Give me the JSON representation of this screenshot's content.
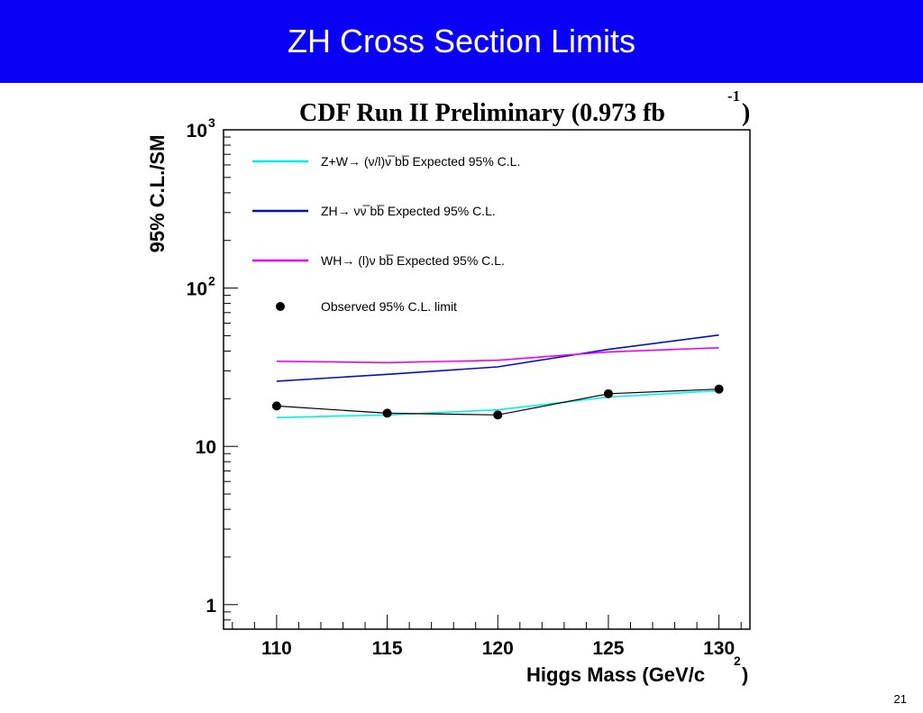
{
  "slide": {
    "title": "ZH Cross Section Limits",
    "page_number": "21"
  },
  "colors": {
    "title_bar": "#0a00f5",
    "cyan": "#00f0f0",
    "blue": "#0010c8",
    "magenta": "#f000f0",
    "black": "#000000"
  },
  "chart_data": {
    "type": "line",
    "title": "CDF Run II Preliminary (0.973 fb",
    "title_superscript": "-1",
    "title_suffix": ")",
    "xlabel": "Higgs Mass (GeV/c",
    "xlabel_superscript": "2",
    "xlabel_suffix": ")",
    "ylabel": "95% C.L./SM",
    "xlim": [
      107.6,
      131.4
    ],
    "ylim": [
      0.7,
      1000
    ],
    "yscale": "log",
    "x_ticks": [
      "110",
      "115",
      "120",
      "125",
      "130"
    ],
    "y_ticks": [
      {
        "value": 1,
        "label": "1",
        "sup": ""
      },
      {
        "value": 10,
        "label": "10",
        "sup": ""
      },
      {
        "value": 100,
        "label": "10",
        "sup": "2"
      },
      {
        "value": 1000,
        "label": "10",
        "sup": "3"
      }
    ],
    "legend_position": "top-left",
    "series": [
      {
        "name": "Z+W→ (ν/l)ν̅ bb̅ Expected 95% C.L.",
        "color": "#00f0f0",
        "style": "line",
        "x": [
          110,
          115,
          120,
          125,
          130
        ],
        "y": [
          15.2,
          15.8,
          17.0,
          20.5,
          22.5
        ]
      },
      {
        "name": "ZH→ νν̅ bb̅ Expected 95% C.L.",
        "color": "#0010c8",
        "style": "line",
        "x": [
          110,
          115,
          120,
          125,
          130
        ],
        "y": [
          25.8,
          28.5,
          31.8,
          41.0,
          50.5
        ]
      },
      {
        "name": "WH→ (l)ν bb̅ Expected 95% C.L.",
        "color": "#f000f0",
        "style": "line",
        "x": [
          110,
          115,
          120,
          125,
          130
        ],
        "y": [
          34.5,
          33.8,
          35.0,
          39.5,
          42.0
        ]
      },
      {
        "name": "Observed 95% C.L. limit",
        "color": "#000000",
        "style": "points",
        "x": [
          110,
          115,
          120,
          125,
          130
        ],
        "y": [
          18.0,
          16.2,
          15.8,
          21.5,
          23.0
        ]
      }
    ]
  }
}
